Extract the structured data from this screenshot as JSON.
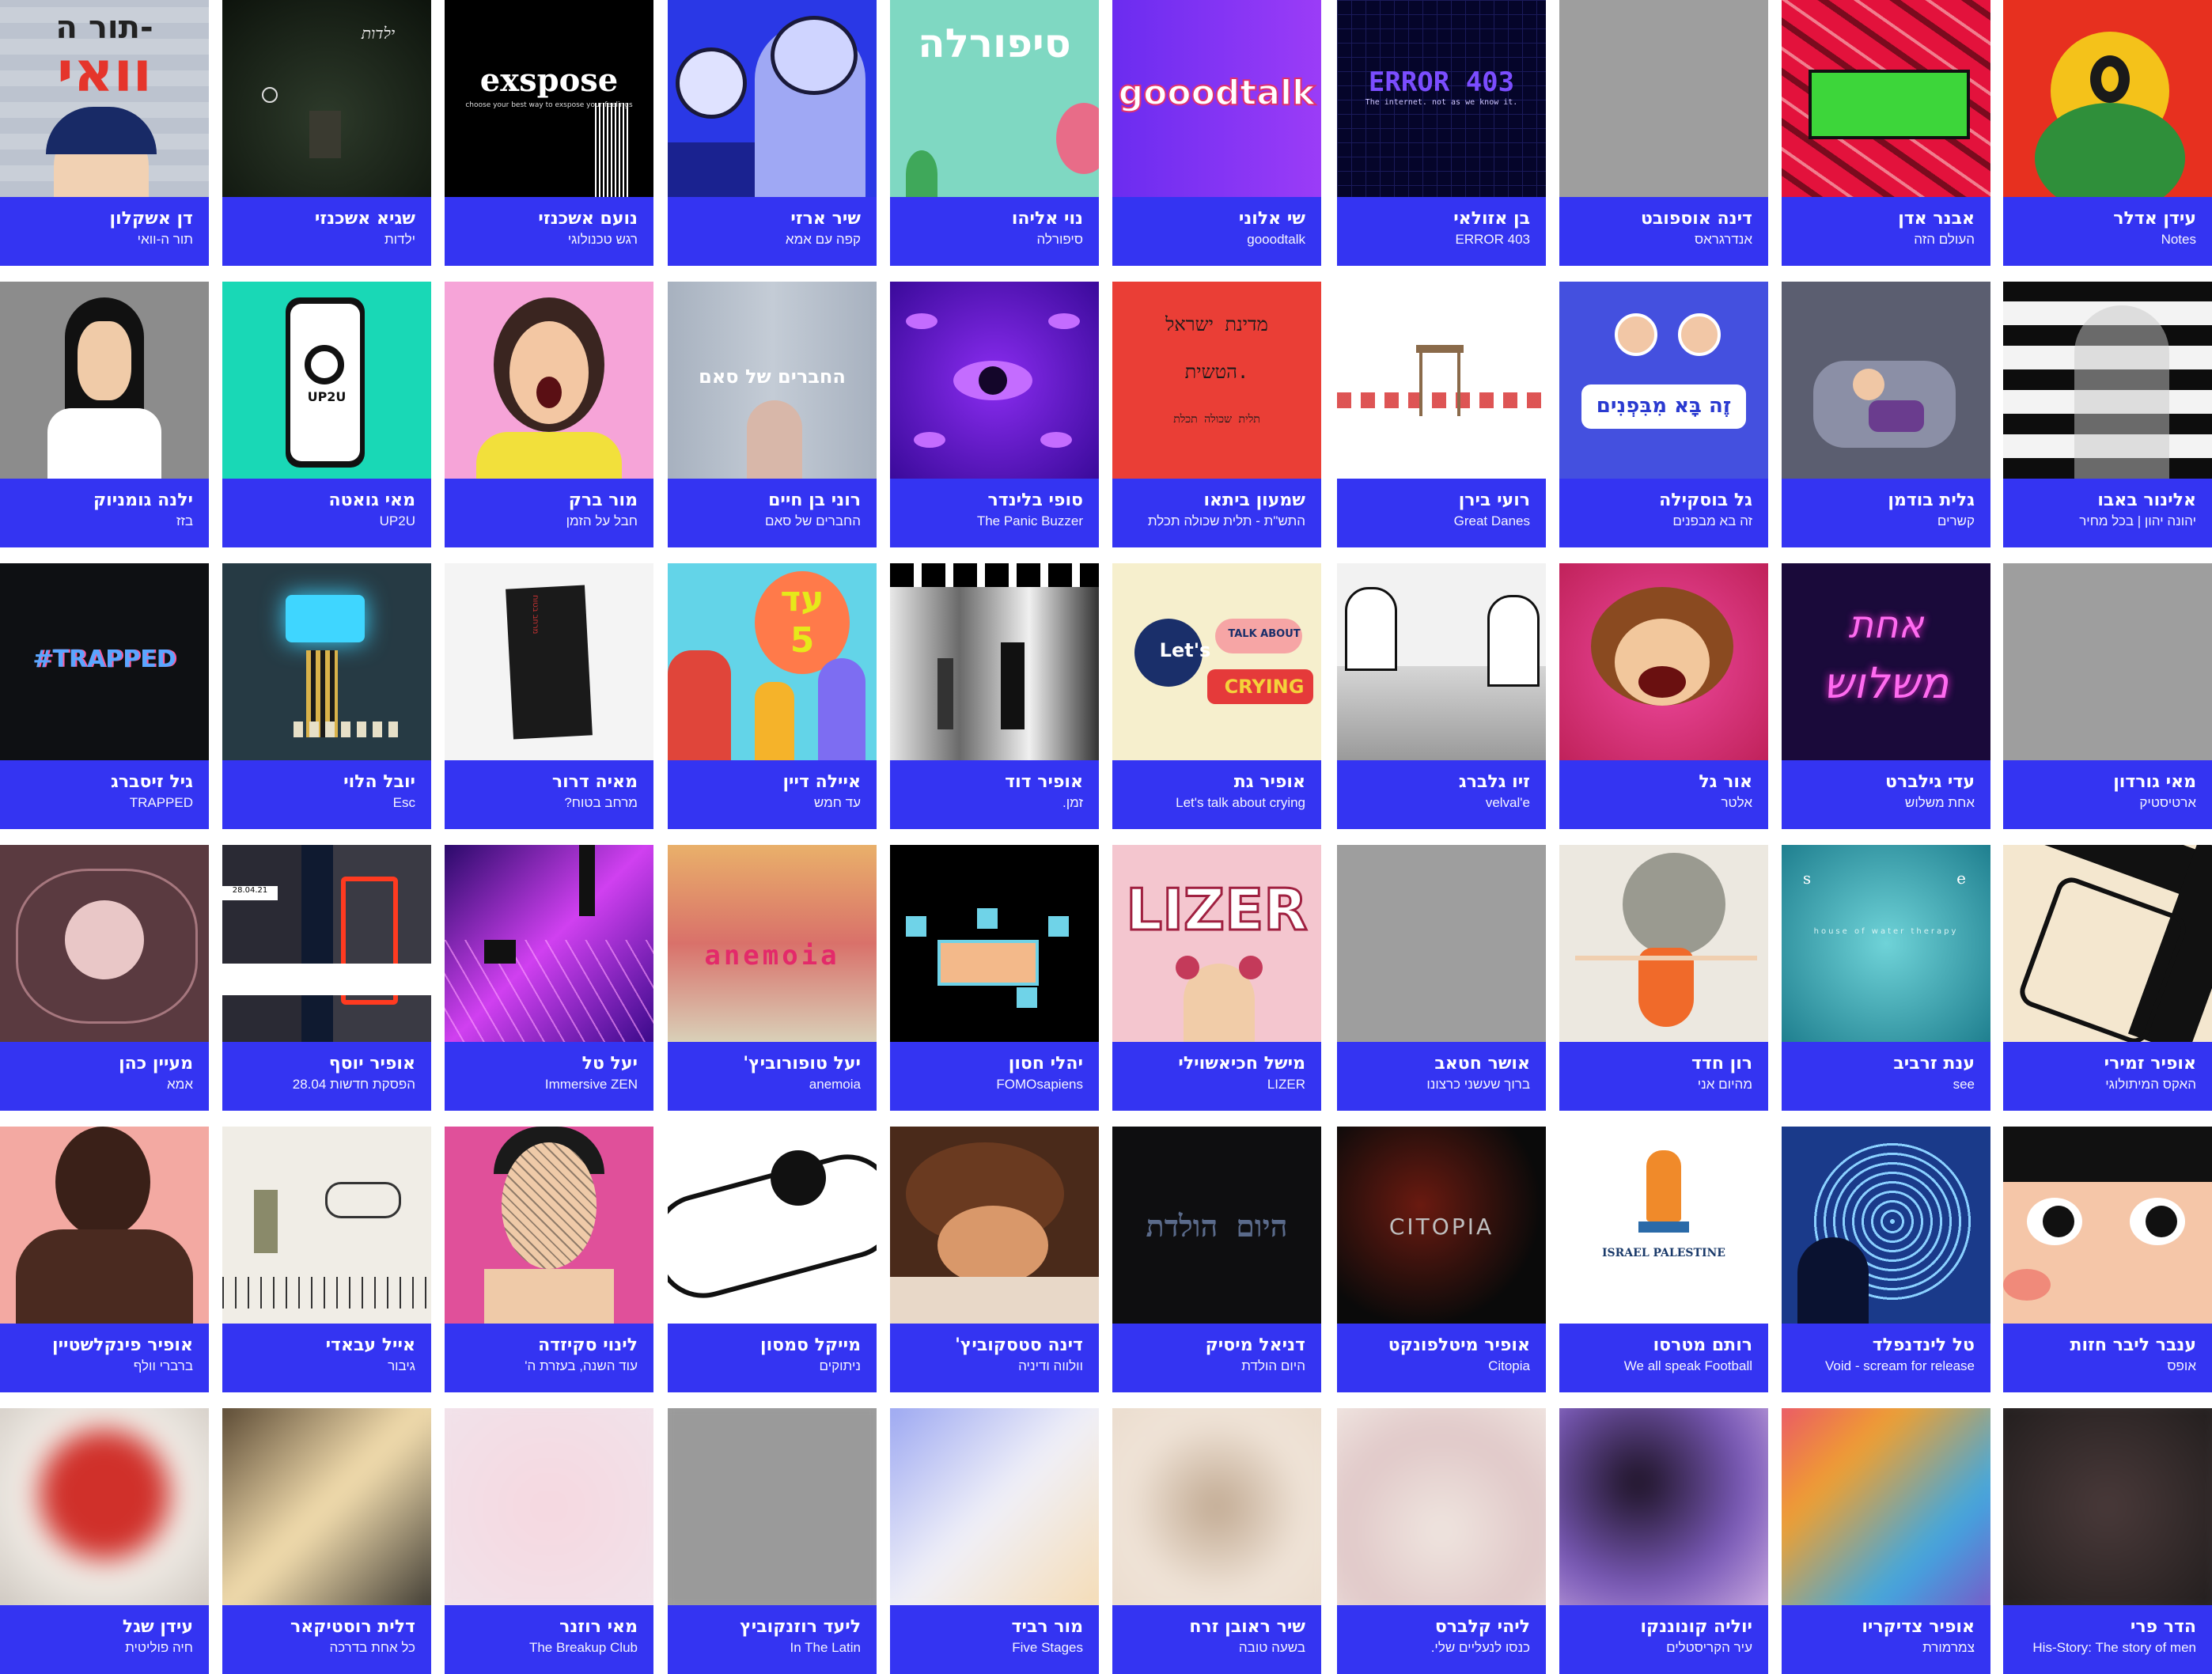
{
  "grid": {
    "rows": [
      [
        {
          "name": "עידן אדלר",
          "project": "Notes",
          "thumb": "notes"
        },
        {
          "name": "אבנר אדן",
          "project": "העולם הזה",
          "thumb": "haolam"
        },
        {
          "name": "דינה אוספובט",
          "project": "אנדרגראס",
          "thumb": "gray"
        },
        {
          "name": "בן אזולאי",
          "project": "ERROR 403",
          "thumb": "error403",
          "thumb_text": "ERROR 403",
          "thumb_subtext": "The internet. not as we know it."
        },
        {
          "name": "שי אלוני",
          "project": "gooodtalk",
          "thumb": "gooodtalk",
          "thumb_text": "gooodtalk"
        },
        {
          "name": "נוי אליהו",
          "project": "סיפורלה",
          "thumb": "sipurela",
          "thumb_text": "סיפורלה"
        },
        {
          "name": "שיר ארזי",
          "project": "קפה עם אמא",
          "thumb": "cafe"
        },
        {
          "name": "נועם אשכנזי",
          "project": "רגש טכנולוגי",
          "thumb": "exspose",
          "thumb_text": "exspose",
          "thumb_subtext": "choose your best way to exspose your feelings"
        },
        {
          "name": "שגיא אשכנזי",
          "project": "ילדות",
          "thumb": "yaldut",
          "thumb_text": "ילדות"
        },
        {
          "name": "דן אשקלון",
          "project": "תור ה-וואי",
          "thumb": "torhawai",
          "thumb_text": "תור ה-",
          "thumb_text2": "וואי"
        }
      ],
      [
        {
          "name": "אלינור באבו",
          "project": "יהונה יהון | בכל מחיר",
          "thumb": "stripes"
        },
        {
          "name": "גלית בודמן",
          "project": "קשרים",
          "thumb": "sleep"
        },
        {
          "name": "גל בוסקילה",
          "project": "זה בא מבפנים",
          "thumb": "zeba",
          "thumb_text": "זֶה בָּא מִבִּפְנִים"
        },
        {
          "name": "רועי בירן",
          "project": "Great Danes",
          "thumb": "chair"
        },
        {
          "name": "שמעון ביתאו",
          "project": "התש\"ת - תלית שכולה תכלת",
          "thumb": "medinat",
          "thumb_text": "מדינת ישראל",
          "thumb_text2": "הטשית.",
          "thumb_subtext": "תלית שכולה תכלת"
        },
        {
          "name": "סופי בלינדר",
          "project": "The Panic Buzzer",
          "thumb": "eyes"
        },
        {
          "name": "רוני בן חיים",
          "project": "החברים של סאם",
          "thumb": "sam",
          "thumb_text": "החברים של סאם"
        },
        {
          "name": "מור ברק",
          "project": "חבל על הזמן",
          "thumb": "scream"
        },
        {
          "name": "מאי גואטה",
          "project": "UP2U",
          "thumb": "up2u",
          "thumb_text": "UP2U"
        },
        {
          "name": "ילנה גומניוק",
          "project": "בזז",
          "thumb": "girl"
        }
      ],
      [
        {
          "name": "מאי גורדון",
          "project": "ארטיסטיק",
          "thumb": "gray"
        },
        {
          "name": "עדי גילברט",
          "project": "אחת משלוש",
          "thumb": "neon",
          "thumb_text": "אחת",
          "thumb_text2": "משלוש"
        },
        {
          "name": "אור גל",
          "project": "אלטר",
          "thumb": "monster"
        },
        {
          "name": "זיו גלברג",
          "project": "velval'e",
          "thumb": "sketch"
        },
        {
          "name": "אופיר גת",
          "project": "Let's talk about crying",
          "thumb": "crying",
          "thumb_text": "Let's",
          "thumb_text2": "TALK ABOUT",
          "thumb_subtext": "CRYING"
        },
        {
          "name": "אופיר דוד",
          "project": "זמן.",
          "thumb": "bwblur"
        },
        {
          "name": "איילה דיין",
          "project": "עד חמש",
          "thumb": "adhamesh",
          "thumb_text": "עד",
          "thumb_text2": "5"
        },
        {
          "name": "מאיה דרור",
          "project": "מרחב בטוח?",
          "thumb": "book",
          "thumb_text": "מרחב בטוח"
        },
        {
          "name": "יובל הלוי",
          "project": "Esc",
          "thumb": "esc"
        },
        {
          "name": "גיל זיסברג",
          "project": "TRAPPED",
          "thumb": "trapped",
          "thumb_text": "#TRAPPED"
        }
      ],
      [
        {
          "name": "אופיר זמירי",
          "project": "האקס המיתולוגי",
          "thumb": "bedlines"
        },
        {
          "name": "ענת זרביב",
          "project": "see",
          "thumb": "sea",
          "thumb_text": "s",
          "thumb_text2": "e",
          "thumb_subtext": "house of water therapy"
        },
        {
          "name": "רון חדד",
          "project": "מהיום אני",
          "thumb": "dress"
        },
        {
          "name": "אושר חטאב",
          "project": "ברוך שעשני כרצונו",
          "thumb": "gray"
        },
        {
          "name": "מישל חכיאשוילי",
          "project": "LIZER",
          "thumb": "lizer",
          "thumb_text": "LIZER"
        },
        {
          "name": "יהלי חסון",
          "project": "FOMOsapiens",
          "thumb": "fomo"
        },
        {
          "name": "יעל טופורוביץ'",
          "project": "anemoia",
          "thumb": "anemoia",
          "thumb_text": "anemoia"
        },
        {
          "name": "יעל טל",
          "project": "Immersive ZEN",
          "thumb": "zen"
        },
        {
          "name": "אופיר יוסף",
          "project": "הפסקת חדשות 28.04",
          "thumb": "news",
          "thumb_text": "28.04.21"
        },
        {
          "name": "מעיין כהן",
          "project": "אמא",
          "thumb": "moon"
        }
      ],
      [
        {
          "name": "ענבר ליבר חזות",
          "project": "אופס",
          "thumb": "eyesclose"
        },
        {
          "name": "טל לינדנפלד",
          "project": "Void - scream for release",
          "thumb": "void"
        },
        {
          "name": "רותם מטרסו",
          "project": "We all speak Football",
          "thumb": "football",
          "thumb_text": "ISRAEL PALESTINE"
        },
        {
          "name": "אופיר מיטלפונקט",
          "project": "Citopia",
          "thumb": "citopia",
          "thumb_text": "CITOPIA"
        },
        {
          "name": "דניאל מיסיק",
          "project": "היום הולדת",
          "thumb": "yomhuledet",
          "thumb_text": "היום הולדת"
        },
        {
          "name": "דינה סטסקוביץ'",
          "project": "וולווה ודיניה",
          "thumb": "lying"
        },
        {
          "name": "מייקל סמסון",
          "project": "ניתוקים",
          "thumb": "carsketch"
        },
        {
          "name": "לינוי סקיזדה",
          "project": "עוד השנה, בעזרת ה'",
          "thumb": "faceletters"
        },
        {
          "name": "אייל עבאדי",
          "project": "גיבור",
          "thumb": "donkey"
        },
        {
          "name": "אופיר פינקלשטיין",
          "project": "ברברי וולף",
          "thumb": "hairy"
        }
      ],
      [
        {
          "name": "הדר פרי",
          "project": "His-Story: The story of men",
          "thumb": "b1"
        },
        {
          "name": "אופיר צדיקריו",
          "project": "צמרמורת",
          "thumb": "b2"
        },
        {
          "name": "יוליה קונוננקו",
          "project": "עיר הקריסטלים",
          "thumb": "b3"
        },
        {
          "name": "ליהי קלברס",
          "project": "כנסו לנעליים שלי.",
          "thumb": "b4"
        },
        {
          "name": "שיר ראובן זרח",
          "project": "בשעה טובה",
          "thumb": "b5"
        },
        {
          "name": "מור רביד",
          "project": "Five Stages",
          "thumb": "b6"
        },
        {
          "name": "ליעד רוזנקוביץ",
          "project": "In The Latin",
          "thumb": "b7"
        },
        {
          "name": "מאי רוזנר",
          "project": "The Breakup Club",
          "thumb": "b8"
        },
        {
          "name": "דלית רוסטיקאר",
          "project": "כל אחת בדרכה",
          "thumb": "b9"
        },
        {
          "name": "עידן שגל",
          "project": "חיה פוליטית",
          "thumb": "b10"
        }
      ]
    ]
  },
  "colors": {
    "label_bg": "#3434f2",
    "label_text": "#ffffff",
    "page_bg": "#ffffff",
    "placeholder": "#9e9e9e"
  }
}
